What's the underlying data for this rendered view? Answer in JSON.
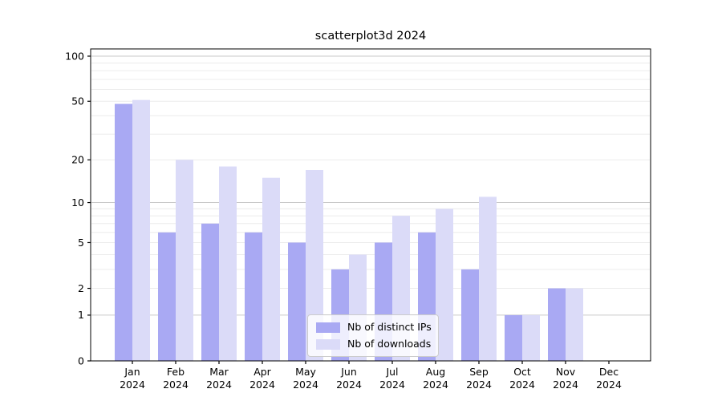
{
  "figure": {
    "title": "scatterplot3d 2024"
  },
  "chart_data": {
    "type": "bar",
    "title": "scatterplot3d 2024",
    "categories": [
      "Jan",
      "Feb",
      "Mar",
      "Apr",
      "May",
      "Jun",
      "Jul",
      "Aug",
      "Sep",
      "Oct",
      "Nov",
      "Dec"
    ],
    "category_year": "2024",
    "series": [
      {
        "name": "Nb of distinct IPs",
        "color": "#a9a9f3",
        "values": [
          48,
          6,
          7,
          6,
          5,
          3,
          5,
          6,
          3,
          1,
          2,
          0
        ]
      },
      {
        "name": "Nb of downloads",
        "color": "#dbdbf8",
        "values": [
          51,
          20,
          18,
          15,
          17,
          4,
          8,
          9,
          11,
          1,
          2,
          0
        ]
      }
    ],
    "xlabel": "",
    "ylabel": "",
    "yscale": "log1p",
    "ylim": [
      0,
      112
    ],
    "yticks": [
      0,
      1,
      2,
      5,
      10,
      20,
      50,
      100
    ],
    "ytick_major_grid": [
      1,
      10,
      100
    ],
    "ytick_minor_grid": [
      2,
      3,
      4,
      5,
      6,
      7,
      8,
      9,
      20,
      30,
      40,
      50,
      60,
      70,
      80,
      90
    ],
    "grid": true,
    "legend_position": "lower center",
    "colors": {
      "axis": "#000000",
      "grid_major": "#c9c9c9",
      "grid_minor": "#ececec",
      "text": "#000000"
    }
  }
}
